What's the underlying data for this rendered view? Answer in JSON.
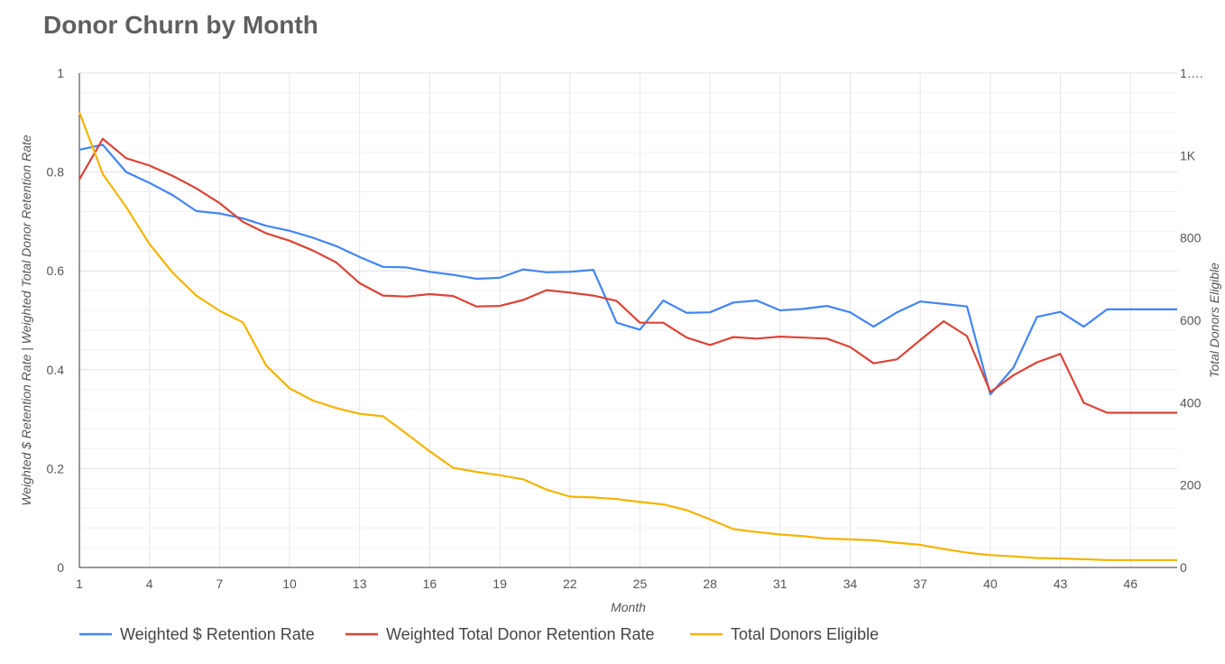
{
  "chart_data": {
    "type": "line",
    "title": "Donor Churn by Month",
    "xlabel": "Month",
    "ylabel": "Weighted $ Retention Rate | Weighted Total Donor Retention Rate",
    "y2label": "Total Donors Eligible",
    "x": [
      1,
      2,
      3,
      4,
      5,
      6,
      7,
      8,
      9,
      10,
      11,
      12,
      13,
      14,
      15,
      16,
      17,
      18,
      19,
      20,
      21,
      22,
      23,
      24,
      25,
      26,
      27,
      28,
      29,
      30,
      31,
      32,
      33,
      34,
      35,
      36,
      37,
      38,
      39,
      40,
      41,
      42,
      43,
      44,
      45,
      46,
      47,
      48
    ],
    "x_ticks": [
      "1",
      "4",
      "7",
      "10",
      "13",
      "16",
      "19",
      "22",
      "25",
      "28",
      "31",
      "34",
      "37",
      "40",
      "43",
      "46"
    ],
    "xlim": [
      1,
      48
    ],
    "ylim": [
      0,
      1
    ],
    "y_ticks": [
      "0",
      "0.2",
      "0.4",
      "0.6",
      "0.8",
      "1"
    ],
    "y2lim": [
      0,
      1200
    ],
    "y2_ticks": [
      "0",
      "200",
      "400",
      "600",
      "800",
      "1K",
      "1…."
    ],
    "grid": true,
    "legend_position": "bottom-left",
    "series": [
      {
        "name": "Weighted $ Retention Rate",
        "axis": "left",
        "color": "#4285F4",
        "values": [
          0.845,
          0.855,
          0.8,
          0.778,
          0.753,
          0.721,
          0.716,
          0.706,
          0.691,
          0.681,
          0.667,
          0.65,
          0.628,
          0.608,
          0.607,
          0.598,
          0.592,
          0.584,
          0.586,
          0.603,
          0.597,
          0.598,
          0.602,
          0.495,
          0.481,
          0.54,
          0.515,
          0.516,
          0.536,
          0.54,
          0.52,
          0.523,
          0.529,
          0.516,
          0.487,
          0.516,
          0.538,
          0.533,
          0.528,
          0.35,
          0.405,
          0.507,
          0.517,
          0.487,
          0.522,
          0.522,
          0.522,
          0.522
        ]
      },
      {
        "name": "Weighted Total Donor Retention Rate",
        "axis": "left",
        "color": "#DB4437",
        "values": [
          0.785,
          0.867,
          0.828,
          0.813,
          0.792,
          0.767,
          0.737,
          0.699,
          0.676,
          0.661,
          0.641,
          0.617,
          0.575,
          0.55,
          0.548,
          0.553,
          0.549,
          0.528,
          0.529,
          0.541,
          0.561,
          0.556,
          0.55,
          0.539,
          0.495,
          0.495,
          0.465,
          0.45,
          0.466,
          0.463,
          0.467,
          0.465,
          0.463,
          0.446,
          0.413,
          0.421,
          0.46,
          0.498,
          0.468,
          0.355,
          0.389,
          0.415,
          0.432,
          0.333,
          0.313,
          0.313,
          0.313,
          0.313
        ]
      },
      {
        "name": "Total Donors Eligible",
        "axis": "right",
        "color": "#F4B400",
        "values": [
          1105,
          955,
          875,
          785,
          715,
          660,
          623,
          595,
          490,
          435,
          405,
          387,
          373,
          367,
          325,
          282,
          242,
          232,
          224,
          214,
          189,
          172,
          170,
          166,
          159,
          153,
          139,
          117,
          93,
          86,
          80,
          76,
          70,
          68,
          66,
          60,
          55,
          45,
          36,
          30,
          27,
          23,
          22,
          20,
          18,
          18,
          18,
          18
        ]
      }
    ]
  }
}
